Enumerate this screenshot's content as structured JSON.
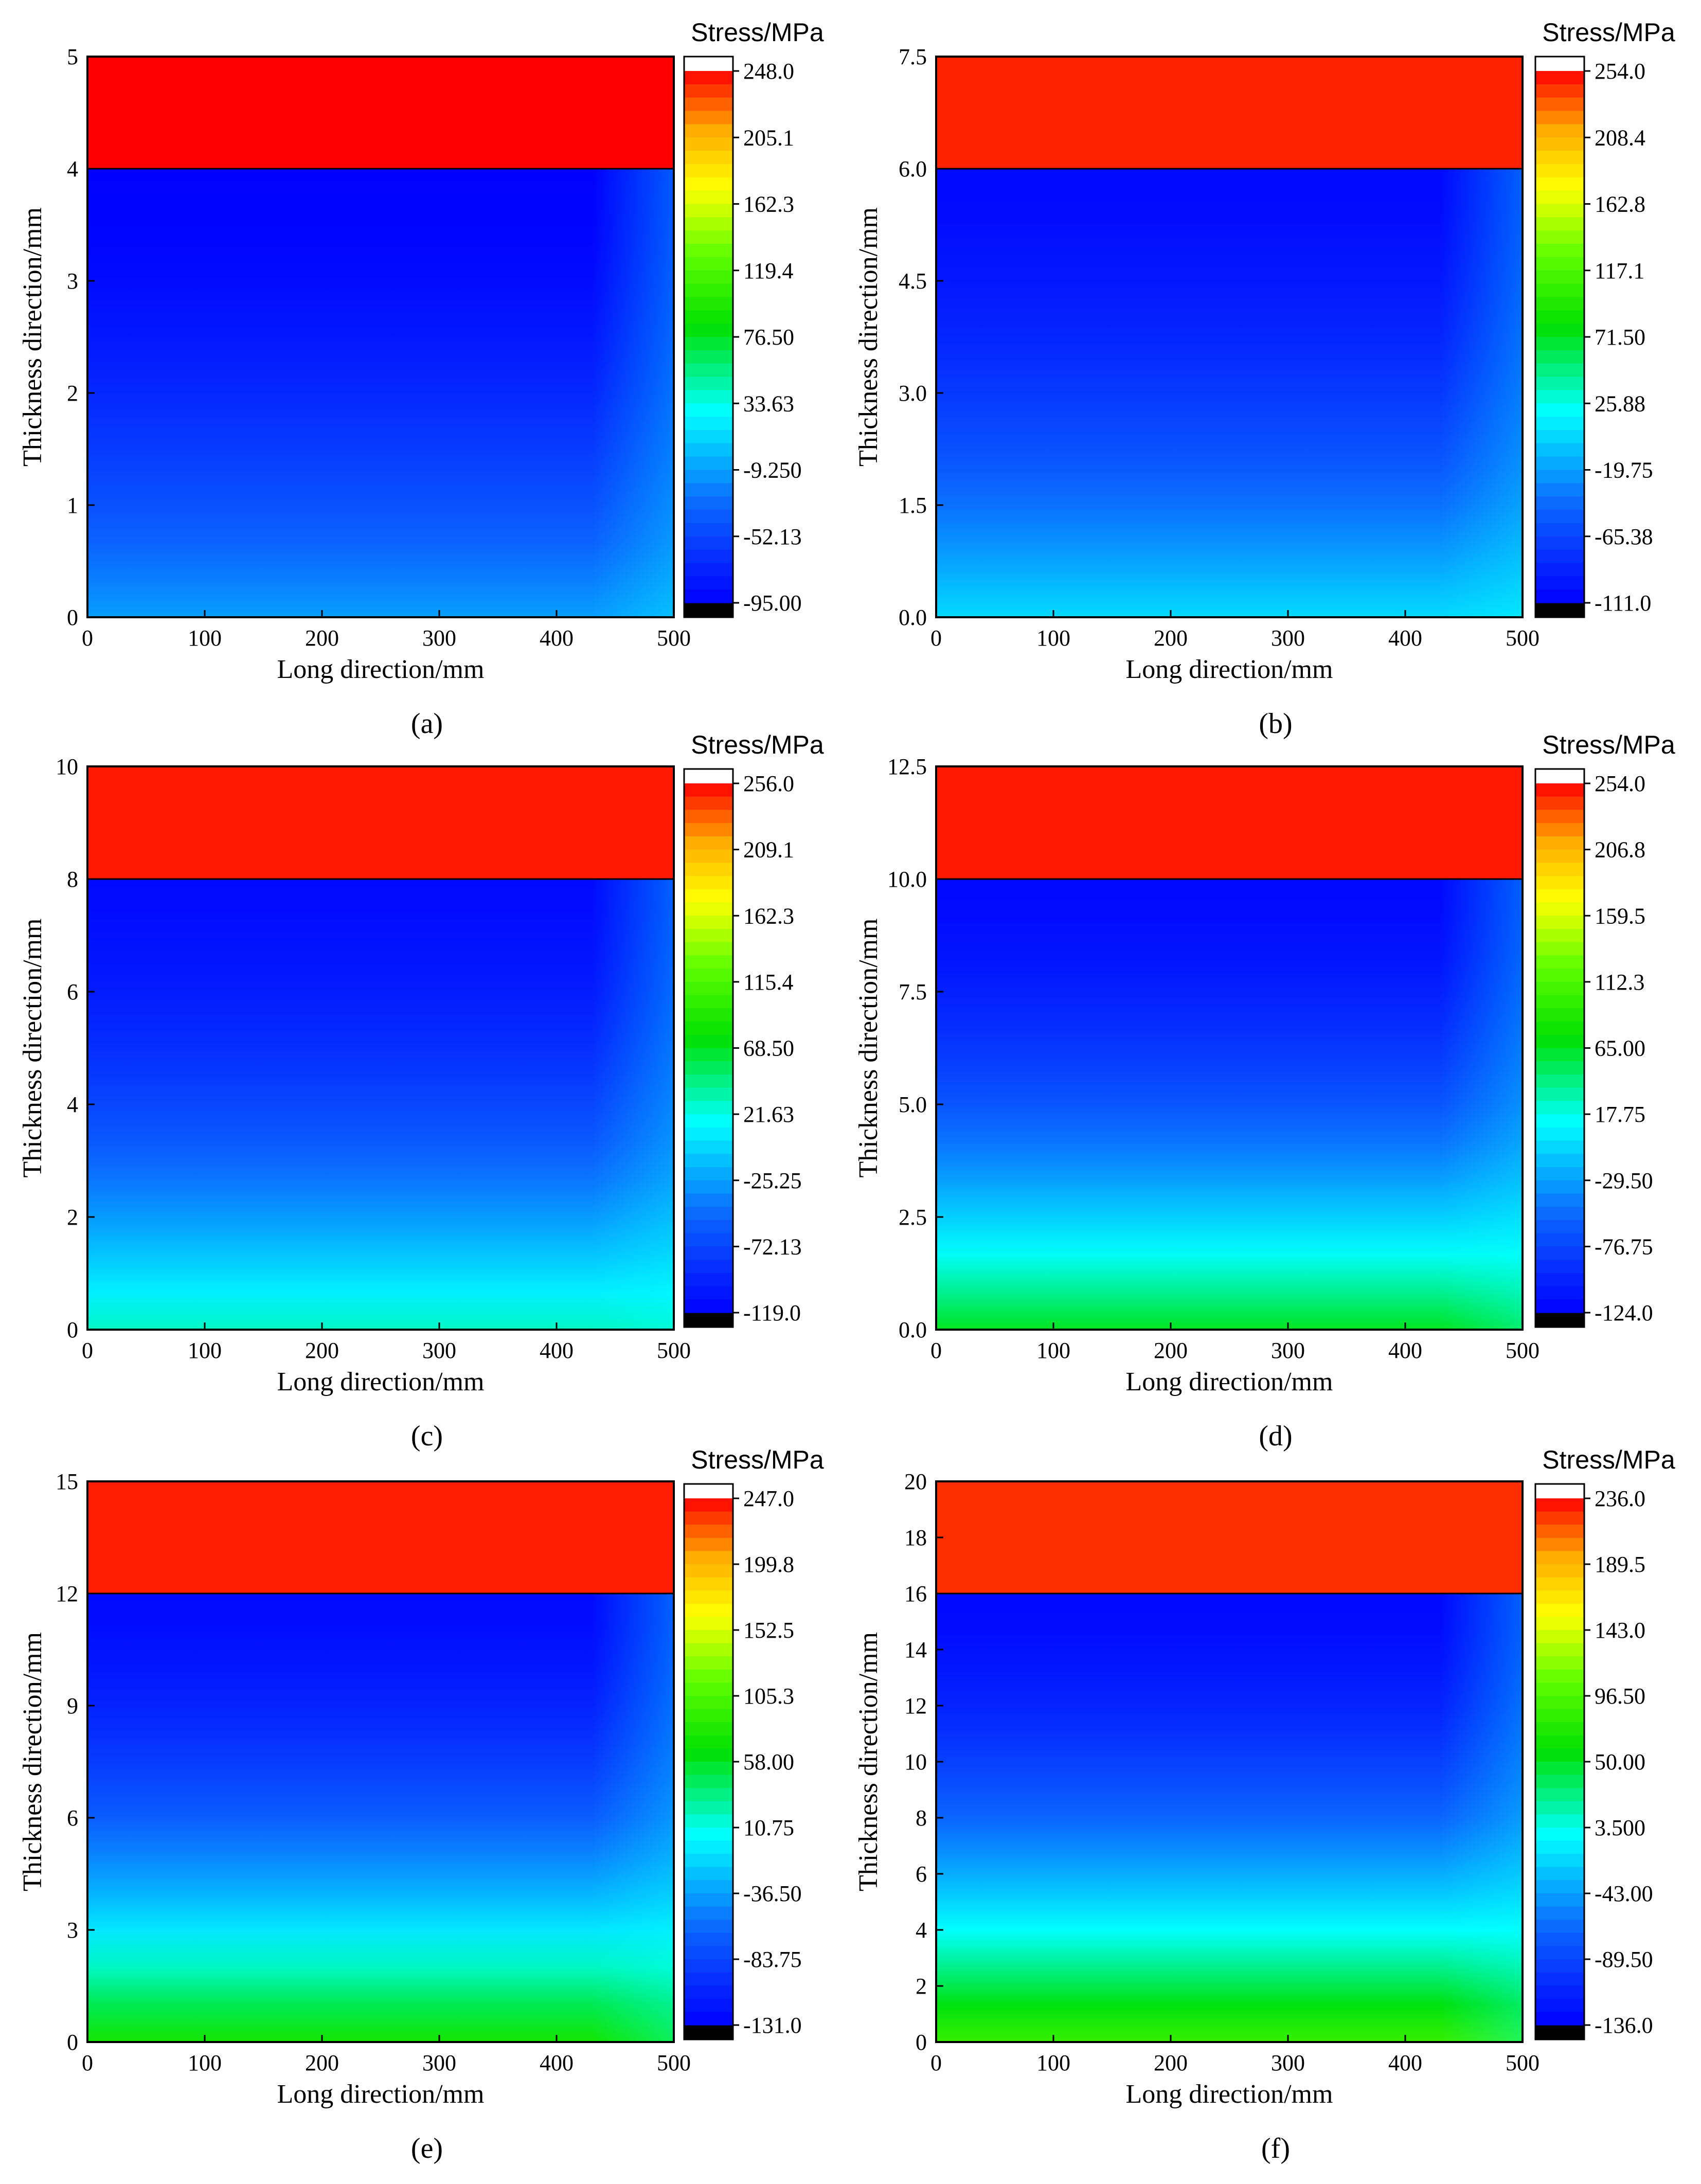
{
  "figure": {
    "colorbar_title": "Stress/MPa",
    "x_axis_label": "Long direction/mm",
    "y_axis_label": "Thickness direction/mm",
    "palette": [
      "#000000",
      "#0000ff",
      "#0b63ff",
      "#00ffff",
      "#00e000",
      "#66ff00",
      "#ffff00",
      "#ffaa00",
      "#ff0000",
      "#ffffff"
    ]
  },
  "chart_data": [
    {
      "type": "heatmap",
      "panel": "(a)",
      "title": "",
      "xlabel": "Long direction/mm",
      "ylabel": "Thickness direction/mm",
      "xlim": [
        0,
        500
      ],
      "ylim": [
        0,
        5
      ],
      "x_ticks": [
        "0",
        "100",
        "200",
        "300",
        "400",
        "500"
      ],
      "y_ticks": [
        "0",
        "1",
        "2",
        "3",
        "4",
        "5"
      ],
      "interface_thickness": 4,
      "colorbar": {
        "title": "Stress/MPa",
        "min": -95.0,
        "max": 248.0,
        "ticks": [
          "248.0",
          "205.1",
          "162.3",
          "119.4",
          "76.50",
          "33.63",
          "-9.250",
          "-52.13",
          "-95.00"
        ]
      },
      "stress_top_layer": 248.0,
      "stress_bottom_surface": -10.0,
      "stress_below_interface": -95.0
    },
    {
      "type": "heatmap",
      "panel": "(b)",
      "title": "",
      "xlabel": "Long direction/mm",
      "ylabel": "Thickness direction/mm",
      "xlim": [
        0,
        500
      ],
      "ylim": [
        0,
        7.5
      ],
      "x_ticks": [
        "0",
        "100",
        "200",
        "300",
        "400",
        "500"
      ],
      "y_ticks": [
        "0.0",
        "1.5",
        "3.0",
        "4.5",
        "6.0",
        "7.5"
      ],
      "interface_thickness": 6,
      "colorbar": {
        "title": "Stress/MPa",
        "min": -111.0,
        "max": 254.0,
        "ticks": [
          "254.0",
          "208.4",
          "162.8",
          "117.1",
          "71.50",
          "25.88",
          "-19.75",
          "-65.38",
          "-111.0"
        ]
      },
      "stress_top_layer": 246.0,
      "stress_bottom_surface": 5.0,
      "stress_below_interface": -105.0
    },
    {
      "type": "heatmap",
      "panel": "(c)",
      "title": "",
      "xlabel": "Long direction/mm",
      "ylabel": "Thickness direction/mm",
      "xlim": [
        0,
        500
      ],
      "ylim": [
        0,
        10
      ],
      "x_ticks": [
        "0",
        "100",
        "200",
        "300",
        "400",
        "500"
      ],
      "y_ticks": [
        "0",
        "2",
        "4",
        "6",
        "8",
        "10"
      ],
      "interface_thickness": 8,
      "colorbar": {
        "title": "Stress/MPa",
        "min": -119.0,
        "max": 256.0,
        "ticks": [
          "256.0",
          "209.1",
          "162.3",
          "115.4",
          "68.50",
          "21.63",
          "-25.25",
          "-72.13",
          "-119.0"
        ]
      },
      "stress_top_layer": 250.0,
      "stress_bottom_surface": 30.0,
      "stress_below_interface": -112.0
    },
    {
      "type": "heatmap",
      "panel": "(d)",
      "title": "",
      "xlabel": "Long direction/mm",
      "ylabel": "Thickness direction/mm",
      "xlim": [
        0,
        500
      ],
      "ylim": [
        0,
        12.5
      ],
      "x_ticks": [
        "0",
        "100",
        "200",
        "300",
        "400",
        "500"
      ],
      "y_ticks": [
        "0.0",
        "2.5",
        "5.0",
        "7.5",
        "10.0",
        "12.5"
      ],
      "interface_thickness": 10,
      "colorbar": {
        "title": "Stress/MPa",
        "min": -124.0,
        "max": 254.0,
        "ticks": [
          "254.0",
          "206.8",
          "159.5",
          "112.3",
          "65.00",
          "17.75",
          "-29.50",
          "-76.75",
          "-124.0"
        ]
      },
      "stress_top_layer": 248.0,
      "stress_bottom_surface": 65.0,
      "stress_below_interface": -118.0
    },
    {
      "type": "heatmap",
      "panel": "(e)",
      "title": "",
      "xlabel": "Long direction/mm",
      "ylabel": "Thickness direction/mm",
      "xlim": [
        0,
        500
      ],
      "ylim": [
        0,
        15
      ],
      "x_ticks": [
        "0",
        "100",
        "200",
        "300",
        "400",
        "500"
      ],
      "y_ticks": [
        "0",
        "3",
        "6",
        "9",
        "12",
        "15"
      ],
      "interface_thickness": 12,
      "colorbar": {
        "title": "Stress/MPa",
        "min": -131.0,
        "max": 247.0,
        "ticks": [
          "247.0",
          "199.8",
          "152.5",
          "105.3",
          "58.00",
          "10.75",
          "-36.50",
          "-83.75",
          "-131.0"
        ]
      },
      "stress_top_layer": 240.0,
      "stress_bottom_surface": 75.0,
      "stress_below_interface": -124.0
    },
    {
      "type": "heatmap",
      "panel": "(f)",
      "title": "",
      "xlabel": "Long direction/mm",
      "ylabel": "Thickness direction/mm",
      "xlim": [
        0,
        500
      ],
      "ylim": [
        0,
        20
      ],
      "x_ticks": [
        "0",
        "100",
        "200",
        "300",
        "400",
        "500"
      ],
      "y_ticks": [
        "0",
        "2",
        "4",
        "6",
        "8",
        "10",
        "12",
        "14",
        "16",
        "18",
        "20"
      ],
      "interface_thickness": 16,
      "colorbar": {
        "title": "Stress/MPa",
        "min": -136.0,
        "max": 236.0,
        "ticks": [
          "236.0",
          "189.5",
          "143.0",
          "96.50",
          "50.00",
          "3.500",
          "-43.00",
          "-89.50",
          "-136.0"
        ]
      },
      "stress_top_layer": 225.0,
      "stress_bottom_surface": 85.0,
      "stress_below_interface": -130.0
    }
  ]
}
